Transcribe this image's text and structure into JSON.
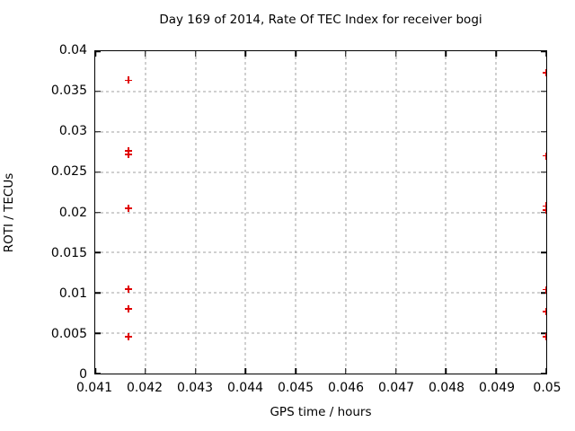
{
  "window": {
    "background": "#ffffff",
    "text_color": "#000000"
  },
  "chart_data": {
    "type": "scatter",
    "title": "Day 169 of 2014, Rate Of TEC Index for receiver bogi",
    "xlabel": "GPS time / hours",
    "ylabel": "ROTI / TECUs",
    "xlim": [
      0.041,
      0.05
    ],
    "ylim": [
      0,
      0.04
    ],
    "xticks": [
      0.041,
      0.042,
      0.043,
      0.044,
      0.045,
      0.046,
      0.047,
      0.048,
      0.049,
      0.05
    ],
    "xtick_labels": [
      "0.041",
      "0.042",
      "0.043",
      "0.044",
      "0.045",
      "0.046",
      "0.047",
      "0.048",
      "0.049",
      "0.05"
    ],
    "yticks": [
      0,
      0.005,
      0.01,
      0.015,
      0.02,
      0.025,
      0.03,
      0.035,
      0.04
    ],
    "ytick_labels": [
      "0",
      "0.005",
      "0.01",
      "0.015",
      "0.02",
      "0.025",
      "0.03",
      "0.035",
      "0.04"
    ],
    "grid": true,
    "legend": "none",
    "marker": "plus",
    "marker_color": "#e00000",
    "grid_color": "#a0a0a0",
    "border_color": "#000000",
    "series": [
      {
        "points": [
          [
            0.041667,
            0.0364
          ],
          [
            0.041667,
            0.0276
          ],
          [
            0.041667,
            0.0272
          ],
          [
            0.041667,
            0.0205
          ],
          [
            0.041667,
            0.0105
          ],
          [
            0.041667,
            0.008
          ],
          [
            0.041667,
            0.0046
          ],
          [
            0.05,
            0.0373
          ],
          [
            0.05,
            0.027
          ],
          [
            0.05,
            0.0208
          ],
          [
            0.05,
            0.0203
          ],
          [
            0.05,
            0.0104
          ],
          [
            0.05,
            0.0077
          ],
          [
            0.05,
            0.0046
          ]
        ]
      }
    ]
  }
}
